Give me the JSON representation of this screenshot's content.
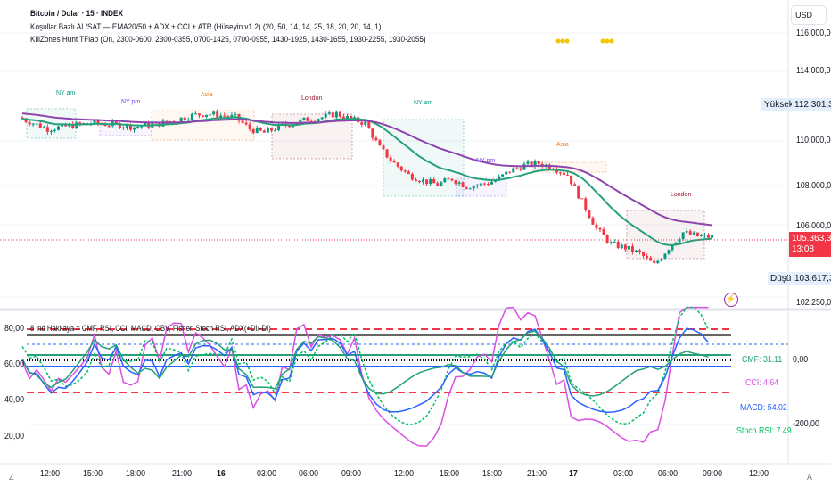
{
  "header": {
    "symbol_title": "Bitcoin / Dolar · 15 · INDEX",
    "indicator1": "Koşullar Bazlı AL/SAT — EMA20/50 + ADX + CCI + ATR (Hüseyin v1.2) (20, 50, 14, 14, 25, 18, 20, 20, 14, 1)",
    "indicator2": "KillZones Hunt TFlab (On, 2300-0600, 2300-0355, 0700-1425, 0700-0955, 1430-1925, 1430-1655, 1930-2255, 1930-2055)",
    "currency_button": "USD",
    "auto_button": "A",
    "left_button": "Z"
  },
  "price_axis": {
    "labels": [
      "116.000,00",
      "114.000,00",
      "110.000,00",
      "108.000,00",
      "106.000,00",
      "102.250,00"
    ],
    "high_label": "Yüksek",
    "high_value": "112.301,36",
    "low_label": "Düşük",
    "low_value": "103.617,39",
    "last_price": "105.363,39",
    "countdown": "13:08"
  },
  "killzones": [
    "NY am",
    "NY pm",
    "Asia",
    "London",
    "NY am",
    "NY pm",
    "Asia",
    "London"
  ],
  "oscillator": {
    "title": "8 ind Hakkaya = CMF, RSI, CCI, MACD, OBV, Fisher, Stoch RSI, ADX(+DI/-DI)",
    "left_labels": [
      "80,00",
      "60,00",
      "40,00",
      "20,00"
    ],
    "right_labels": [
      "0,00",
      "-200,00"
    ],
    "cmf": "CMF: 31.11",
    "cci": "CCI: 4.64",
    "macd": "MACD: 54.02",
    "stoch": "Stoch RSI: 7.49"
  },
  "time_axis": [
    "12:00",
    "15:00",
    "18:00",
    "21:00",
    "16",
    "03:00",
    "06:00",
    "09:00",
    "12:00",
    "15:00",
    "18:00",
    "21:00",
    "17",
    "03:00",
    "06:00",
    "09:00",
    "12:00"
  ],
  "colors": {
    "up": "#089981",
    "down": "#f23645",
    "ema20": "#26a17b",
    "ema50": "#8e44ad",
    "last": "#f23645"
  },
  "chart_data": {
    "type": "candlestick",
    "title": "Bitcoin / Dolar · 15 · INDEX",
    "interval": "15m",
    "hourly_close": [
      111600,
      111300,
      111000,
      111100,
      111200,
      111300,
      111250,
      111200,
      111100,
      111200,
      111300,
      111500,
      111700,
      111800,
      111700,
      111600,
      111000,
      110800,
      111100,
      111300,
      111500,
      111600,
      111800,
      111500,
      111300,
      110000,
      109200,
      108600,
      108300,
      108100,
      108400,
      108000,
      108100,
      108300,
      108800,
      109100,
      109200,
      109000,
      108600,
      107200,
      105800,
      105000,
      104800,
      104500,
      103900,
      104800,
      105600,
      105400,
      105363
    ],
    "ylim": [
      102250,
      116500
    ],
    "overlays": [
      "EMA20",
      "EMA50"
    ]
  }
}
